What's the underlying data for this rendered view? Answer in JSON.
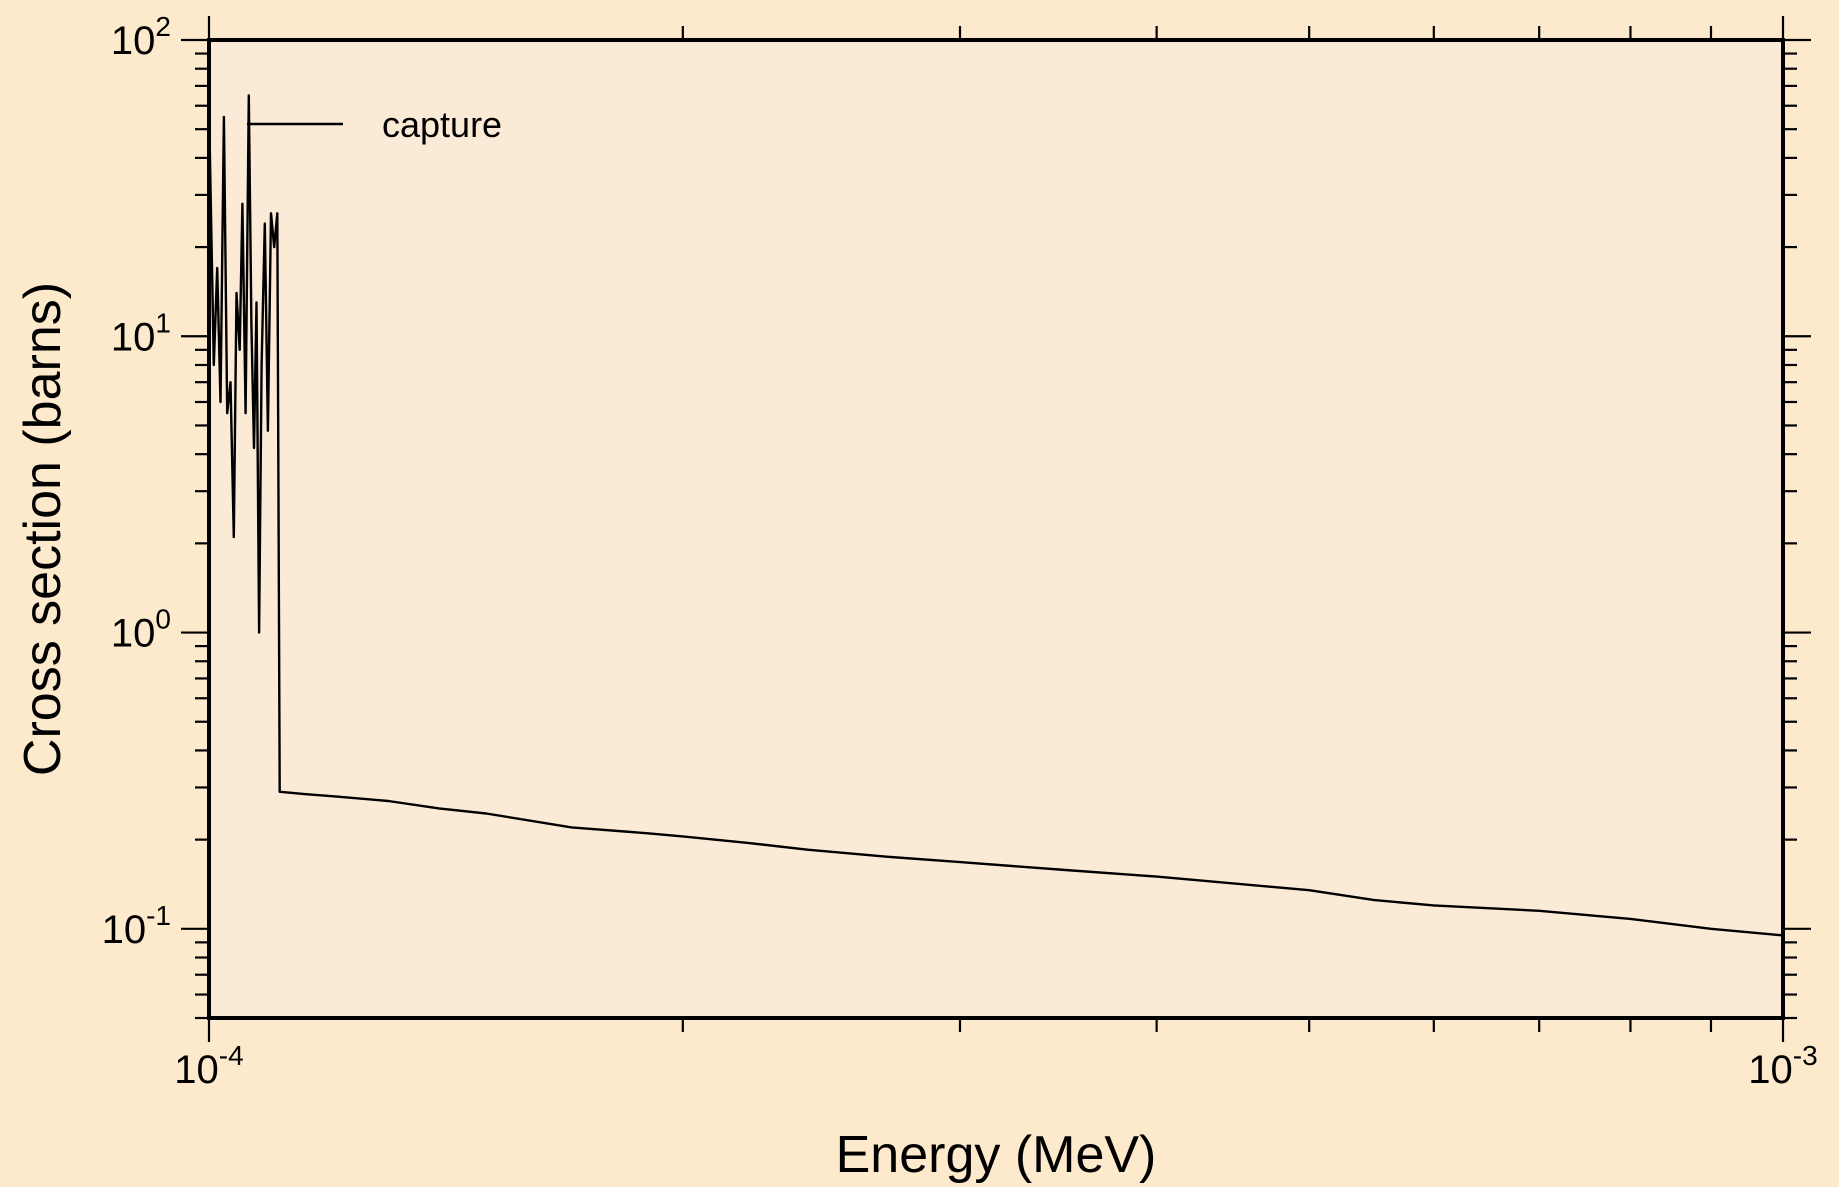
{
  "chart_data": {
    "type": "line",
    "xlabel": "Energy (MeV)",
    "ylabel": "Cross section (barns)",
    "x_scale": "log",
    "y_scale": "log",
    "xlim": [
      0.0001,
      0.001
    ],
    "ylim": [
      0.05,
      100
    ],
    "grid": false,
    "legend": {
      "position": "top-left",
      "entries": [
        "capture"
      ]
    },
    "x_tick_labels": [
      {
        "value": 0.0001,
        "base": "10",
        "exp": "-4"
      },
      {
        "value": 0.001,
        "base": "10",
        "exp": "-3"
      }
    ],
    "y_tick_labels": [
      {
        "value": 0.1,
        "base": "10",
        "exp": "-1"
      },
      {
        "value": 1,
        "base": "10",
        "exp": "0"
      },
      {
        "value": 10,
        "base": "10",
        "exp": "1"
      },
      {
        "value": 100,
        "base": "10",
        "exp": "2"
      }
    ],
    "series": [
      {
        "name": "capture",
        "color": "#000000",
        "x": [
          0.0001,
          0.0001007,
          0.0001012,
          0.0001017,
          0.0001022,
          0.0001027,
          0.0001032,
          0.0001037,
          0.0001041,
          0.0001046,
          0.000105,
          0.0001055,
          0.000106,
          0.0001064,
          0.0001068,
          0.0001072,
          0.0001076,
          0.000108,
          0.0001085,
          0.000109,
          0.0001095,
          0.00011,
          0.0001105,
          0.0001109,
          0.000111,
          0.000115,
          0.00012,
          0.00013,
          0.00014,
          0.00015,
          0.00017,
          0.00019,
          0.0002,
          0.00022,
          0.00024,
          0.00027,
          0.0003,
          0.00035,
          0.0004,
          0.0005,
          0.00055,
          0.0006,
          0.0007,
          0.0008,
          0.0009,
          0.001
        ],
        "y": [
          60,
          8,
          17,
          6,
          55,
          5.5,
          7,
          2.1,
          14,
          9,
          28,
          5.5,
          65,
          11,
          4.2,
          13,
          1.0,
          8,
          24,
          4.8,
          26,
          20,
          26,
          0.29,
          0.29,
          0.285,
          0.28,
          0.27,
          0.255,
          0.245,
          0.22,
          0.21,
          0.205,
          0.195,
          0.185,
          0.175,
          0.168,
          0.158,
          0.15,
          0.135,
          0.125,
          0.12,
          0.115,
          0.108,
          0.1,
          0.095
        ]
      }
    ]
  }
}
